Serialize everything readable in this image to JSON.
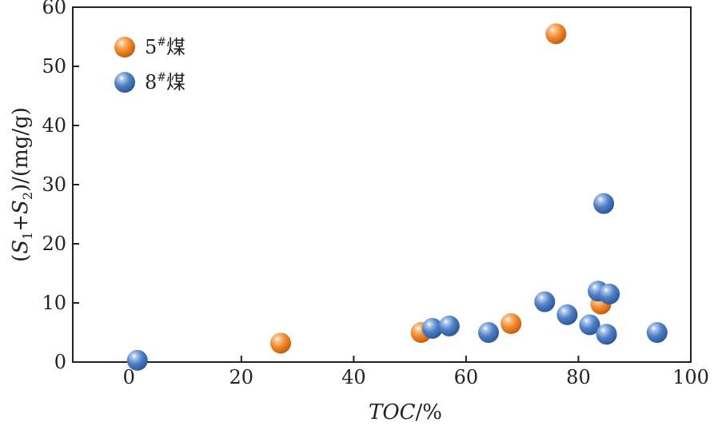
{
  "chart_data": {
    "type": "scatter",
    "xlabel": {
      "italic": "TOC",
      "rest": "/%"
    },
    "ylabel": {
      "open": "(",
      "s1": "S",
      "sub1": "1",
      "plus": "+",
      "s2": "S",
      "sub2": "2",
      "close": ")/(mg/g)"
    },
    "xlim": [
      -10,
      100
    ],
    "ylim": [
      0,
      60
    ],
    "xticks": [
      0,
      20,
      40,
      60,
      80,
      100
    ],
    "yticks": [
      0,
      10,
      20,
      30,
      40,
      50,
      60
    ],
    "grid": false,
    "legend_position": "top-left",
    "series": [
      {
        "name": {
          "base": "5",
          "sup": "#",
          "suffix": "煤"
        },
        "color": "#f28a30",
        "points": [
          {
            "x": 27,
            "y": 3.2
          },
          {
            "x": 52,
            "y": 5.0
          },
          {
            "x": 68,
            "y": 6.5
          },
          {
            "x": 76,
            "y": 55.5
          },
          {
            "x": 84,
            "y": 9.8
          }
        ]
      },
      {
        "name": {
          "base": "8",
          "sup": "#",
          "suffix": "煤"
        },
        "color": "#4f80c4",
        "points": [
          {
            "x": 1.5,
            "y": 0.3
          },
          {
            "x": 54,
            "y": 5.7
          },
          {
            "x": 57,
            "y": 6.1
          },
          {
            "x": 64,
            "y": 5.0
          },
          {
            "x": 74,
            "y": 10.2
          },
          {
            "x": 78,
            "y": 8.0
          },
          {
            "x": 82,
            "y": 6.3
          },
          {
            "x": 83.5,
            "y": 12.0
          },
          {
            "x": 84.5,
            "y": 26.8
          },
          {
            "x": 85,
            "y": 4.7
          },
          {
            "x": 85.5,
            "y": 11.5
          },
          {
            "x": 94,
            "y": 5.0
          }
        ]
      }
    ]
  }
}
